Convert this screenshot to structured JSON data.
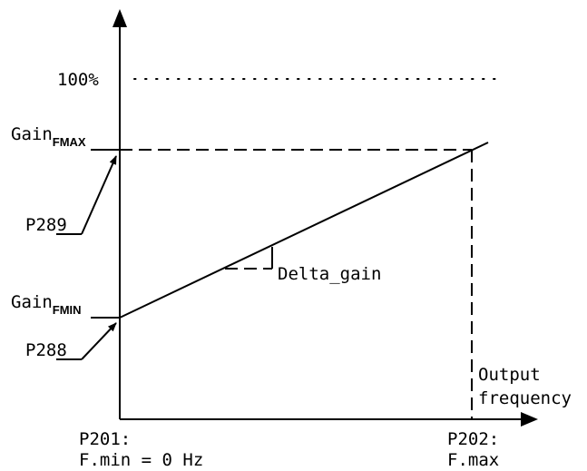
{
  "diagram": {
    "y_hundred_percent_label": "100%",
    "gain_fmax": {
      "base": "Gain",
      "sub": "FMAX"
    },
    "gain_fmin": {
      "base": "Gain",
      "sub": "FMIN"
    },
    "param_p289": "P289",
    "param_p288": "P288",
    "delta_gain_label": "Delta_gain",
    "output_frequency_line1": "Output",
    "output_frequency_line2": "frequency",
    "p201_line1": "P201:",
    "p201_line2": "F.min = 0 Hz",
    "p202_line1": "P202:",
    "p202_line2": "F.max"
  }
}
